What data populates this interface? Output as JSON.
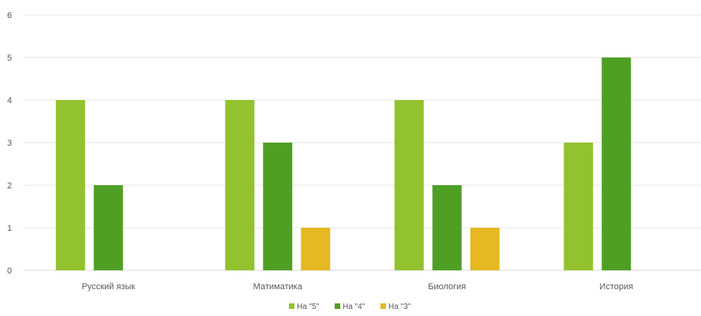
{
  "chart_data": {
    "type": "bar",
    "categories": [
      "Русский язык",
      "Матиматика",
      "Биология",
      "История"
    ],
    "series": [
      {
        "name": "На \"5\"",
        "values": [
          4,
          4,
          4,
          3
        ],
        "color": "#92c22d"
      },
      {
        "name": "На \"4\"",
        "values": [
          2,
          3,
          2,
          5
        ],
        "color": "#4f9f24"
      },
      {
        "name": "На \"3\"",
        "values": [
          0,
          1,
          1,
          0
        ],
        "color": "#e6b821"
      }
    ],
    "y_ticks": [
      "0",
      "1",
      "2",
      "3",
      "4",
      "5",
      "6"
    ],
    "ylim": [
      0,
      6
    ],
    "grid": true,
    "legend_position": "bottom"
  }
}
